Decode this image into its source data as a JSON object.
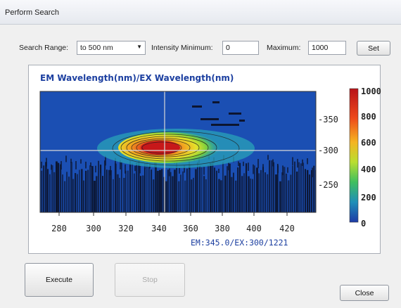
{
  "window": {
    "title": "Perform Search"
  },
  "search": {
    "range_label": "Search Range:",
    "range_value": "to 500 nm",
    "intensity_min_label": "Intensity Minimum:",
    "intensity_min_value": "0",
    "maximum_label": "Maximum:",
    "maximum_value": "1000",
    "set_label": "Set"
  },
  "plot": {
    "title": "EM Wavelength(nm)/EX Wavelength(nm)",
    "readout": "EM:345.0/EX:300/1221",
    "x_ticks": [
      "280",
      "300",
      "320",
      "340",
      "360",
      "380",
      "400",
      "420"
    ],
    "y_ticks": [
      "-350",
      "-300",
      "-250"
    ],
    "colorbar_ticks": [
      "1000",
      "800",
      "600",
      "400",
      "200",
      "0"
    ],
    "colors": {
      "background": "#1b4fb3",
      "noise": "#0c1530",
      "crosshair": "#d8d8d8"
    }
  },
  "buttons": {
    "execute": "Execute",
    "stop": "Stop",
    "close": "Close"
  }
}
